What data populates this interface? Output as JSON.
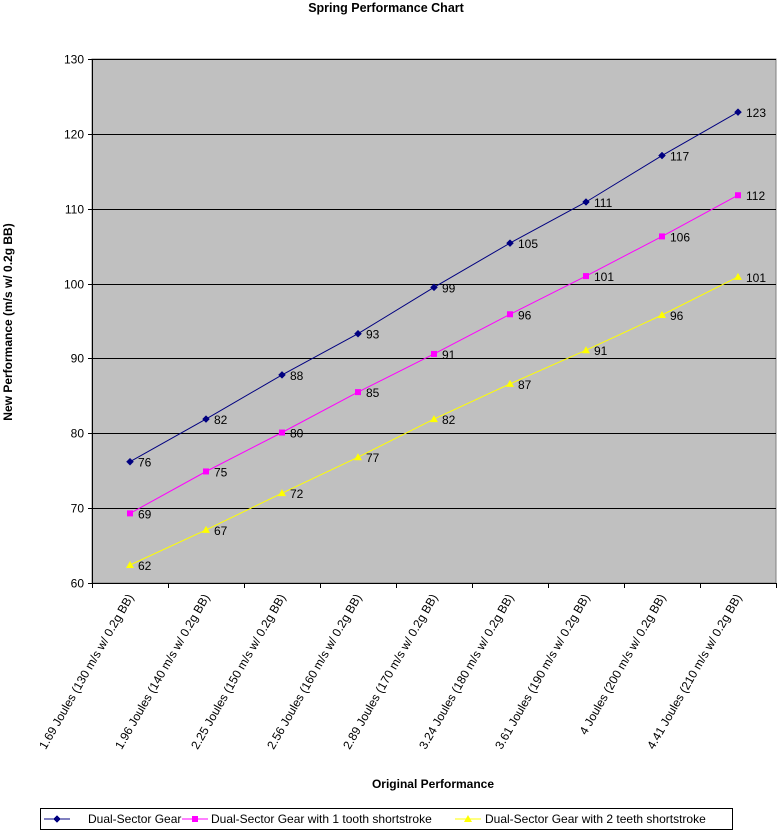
{
  "chart_data": {
    "type": "line",
    "title": "Spring Performance Chart",
    "xlabel": "Original Performance",
    "ylabel": "New Performance (m/s w/ 0.2g BB)",
    "ylim": [
      60,
      130
    ],
    "yticks": [
      60,
      70,
      80,
      90,
      100,
      110,
      120,
      130
    ],
    "grid": true,
    "legend_position": "bottom",
    "plot_background": "#c0c0c0",
    "categories": [
      "1.69 Joules (130 m/s w/ 0.2g BB)",
      "1.96 Joules (140 m/s w/ 0.2g BB)",
      "2.25 Joules (150 m/s w/ 0.2g BB)",
      "2.56 Joules (160 m/s w/ 0.2g BB)",
      "2.89 Joules (170 m/s w/ 0.2g BB)",
      "3.24 Joules (180 m/s w/ 0.2g BB)",
      "3.61 Joules (190 m/s w/ 0.2g BB)",
      "4 Joules (200 m/s w/ 0.2g BB)",
      "4.41 Joules (210 m/s w/ 0.2g BB)"
    ],
    "series": [
      {
        "name": "Dual-Sector Gear",
        "color": "#000080",
        "marker": "diamond",
        "values": [
          76.2,
          81.9,
          87.8,
          93.3,
          99.5,
          105.4,
          110.9,
          117.1,
          122.9
        ],
        "labels": [
          "76",
          "82",
          "88",
          "93",
          "99",
          "105",
          "111",
          "117",
          "123"
        ]
      },
      {
        "name": "Dual-Sector Gear with 1 tooth shortstroke",
        "color": "#ff00ff",
        "marker": "square",
        "values": [
          69.3,
          74.9,
          80.1,
          85.5,
          90.6,
          95.9,
          101.0,
          106.3,
          111.8
        ],
        "labels": [
          "69",
          "75",
          "80",
          "85",
          "91",
          "96",
          "101",
          "106",
          "112"
        ]
      },
      {
        "name": "Dual-Sector Gear with 2 teeth shortstroke",
        "color": "#ffff00",
        "marker": "triangle",
        "values": [
          62.4,
          67.1,
          72.0,
          76.8,
          81.9,
          86.6,
          91.1,
          95.8,
          100.9
        ],
        "labels": [
          "62",
          "67",
          "72",
          "77",
          "82",
          "87",
          "91",
          "96",
          "101"
        ]
      }
    ]
  }
}
